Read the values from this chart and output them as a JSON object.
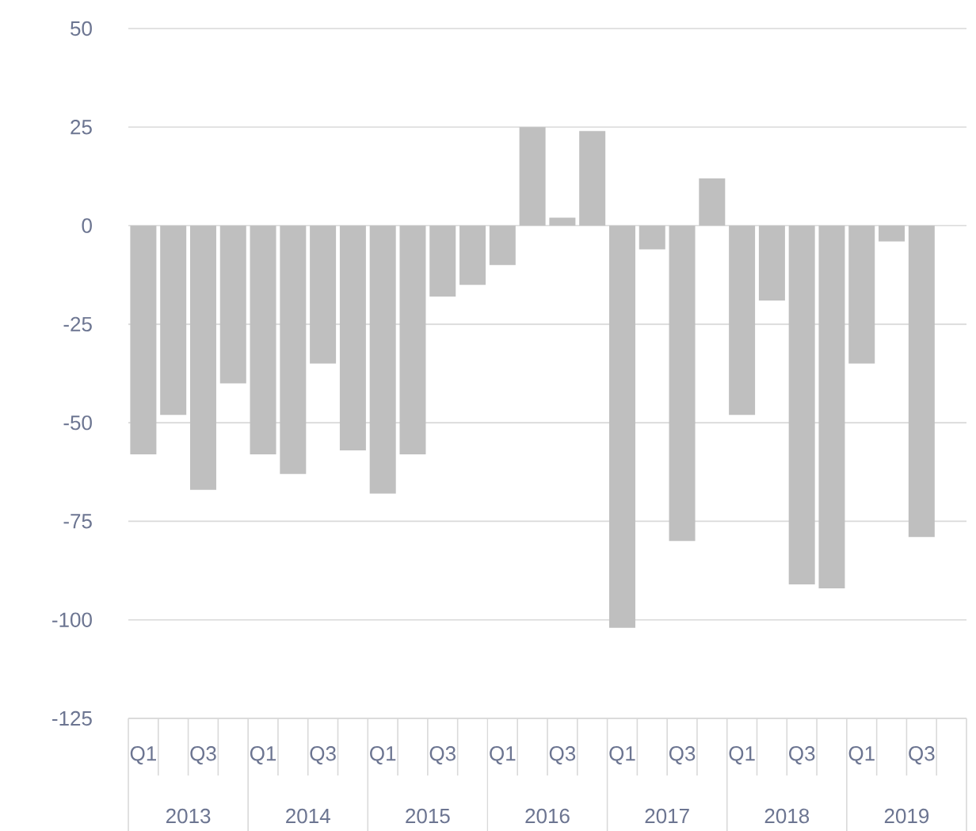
{
  "chart_data": {
    "type": "bar",
    "categories": [
      "Q1",
      null,
      "Q3",
      null,
      "Q1",
      null,
      "Q3",
      null,
      "Q1",
      null,
      "Q3",
      null,
      "Q1",
      null,
      "Q3",
      null,
      "Q1",
      null,
      "Q3",
      null,
      "Q1",
      null,
      "Q3",
      null,
      "Q1",
      null,
      "Q3",
      null
    ],
    "values": [
      -58,
      -48,
      -67,
      -40,
      -58,
      -63,
      -35,
      -57,
      -68,
      -58,
      -18,
      -15,
      -10,
      25,
      2,
      24,
      -102,
      -6,
      -80,
      12,
      -48,
      -19,
      -91,
      -92,
      -35,
      -4,
      -79,
      null
    ],
    "color": "#bfbfbf",
    "ylim": [
      -125,
      50
    ],
    "yticks": [
      -125,
      -100,
      -75,
      -50,
      -25,
      0,
      25,
      50
    ],
    "grid": "y",
    "annotations": [
      "2013",
      "2014",
      "2015",
      "2016",
      "2017",
      "2018",
      "2019"
    ]
  }
}
